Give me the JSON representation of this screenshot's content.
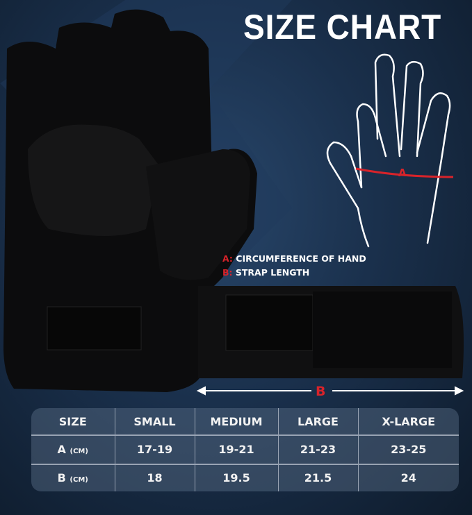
{
  "title": "SIZE CHART",
  "hand_marker": "A",
  "legend": {
    "a_key": "A:",
    "a_text": "CIRCUMFERENCE OF HAND",
    "b_key": "B:",
    "b_text": "STRAP LENGTH"
  },
  "strap_marker": "B",
  "colors": {
    "accent": "#d8232a",
    "background": "#1a304c"
  },
  "table": {
    "header": [
      "SIZE",
      "SMALL",
      "MEDIUM",
      "LARGE",
      "X-LARGE"
    ],
    "rows": [
      {
        "label": "A",
        "unit": "(CM)",
        "values": [
          "17-19",
          "19-21",
          "21-23",
          "23-25"
        ]
      },
      {
        "label": "B",
        "unit": "(CM)",
        "values": [
          "18",
          "19.5",
          "21.5",
          "24"
        ]
      }
    ]
  }
}
